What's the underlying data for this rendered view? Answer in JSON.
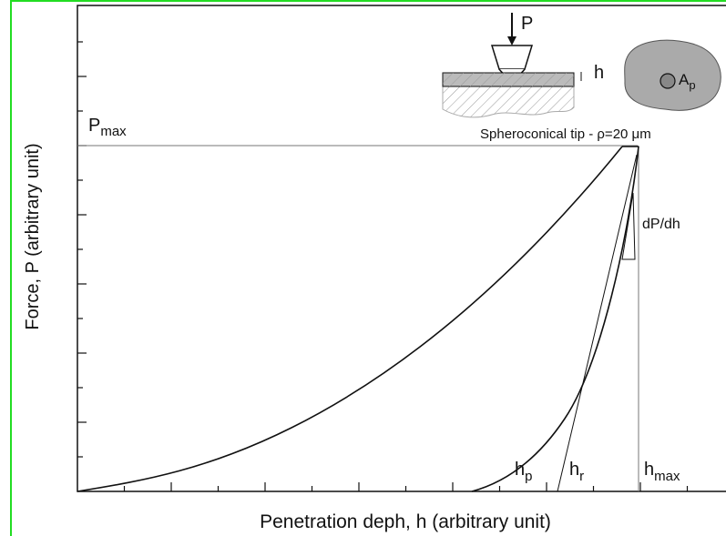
{
  "y_axis_label": "Force, P (arbitrary unit)",
  "x_axis_label": "Penetration deph, h (arbitrary unit)",
  "p_max": {
    "main": "P",
    "sub": "max"
  },
  "h_p": {
    "main": "h",
    "sub": "p"
  },
  "h_r": {
    "main": "h",
    "sub": "r"
  },
  "h_max": {
    "main": "h",
    "sub": "max"
  },
  "slope_label": "dP/dh",
  "inset": {
    "force": "P",
    "depth": "h",
    "tip_caption": "Spheroconical tip - ρ=20 μm",
    "area": {
      "main": "A",
      "sub": "p"
    }
  }
}
